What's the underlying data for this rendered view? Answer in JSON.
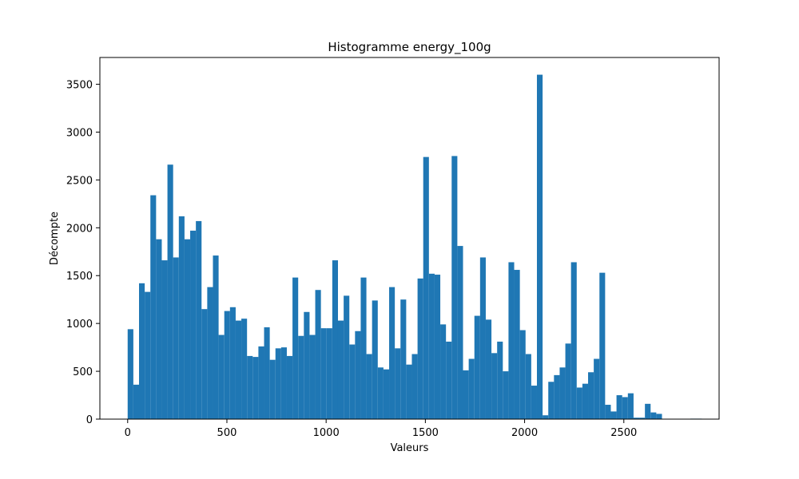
{
  "chart_data": {
    "type": "bar",
    "title": "Histogramme energy_100g",
    "xlabel": "Valeurs",
    "ylabel": "Décompte",
    "bar_color": "#1f77b4",
    "xlim": [
      -140,
      2980
    ],
    "ylim": [
      0,
      3780
    ],
    "x_ticks": [
      0,
      500,
      1000,
      1500,
      2000,
      2500
    ],
    "x_tick_labels": [
      "0",
      "500",
      "1000",
      "1500",
      "2000",
      "2500"
    ],
    "y_ticks": [
      0,
      500,
      1000,
      1500,
      2000,
      2500,
      3000,
      3500
    ],
    "y_tick_labels": [
      "0",
      "500",
      "1000",
      "1500",
      "2000",
      "2500",
      "3000",
      "3500"
    ],
    "grid": false,
    "bin_start": 0,
    "bin_width": 28.64,
    "counts": [
      940,
      360,
      1420,
      1330,
      2340,
      1880,
      1660,
      2660,
      1690,
      2120,
      1880,
      1970,
      2070,
      1150,
      1380,
      1710,
      880,
      1130,
      1170,
      1030,
      1050,
      660,
      650,
      760,
      960,
      620,
      740,
      750,
      660,
      1480,
      870,
      1120,
      880,
      1350,
      950,
      950,
      1660,
      1030,
      1290,
      780,
      920,
      1480,
      680,
      1240,
      540,
      520,
      1380,
      740,
      1250,
      570,
      680,
      1470,
      2740,
      1520,
      1510,
      990,
      810,
      2750,
      1810,
      510,
      630,
      1080,
      1690,
      1040,
      690,
      810,
      500,
      1640,
      1560,
      930,
      680,
      350,
      3600,
      40,
      390,
      460,
      540,
      790,
      1640,
      330,
      370,
      490,
      630,
      1530,
      150,
      80,
      250,
      230,
      270,
      15,
      15,
      160,
      70,
      55,
      0,
      0,
      0,
      0,
      0,
      5,
      5,
      3
    ]
  }
}
